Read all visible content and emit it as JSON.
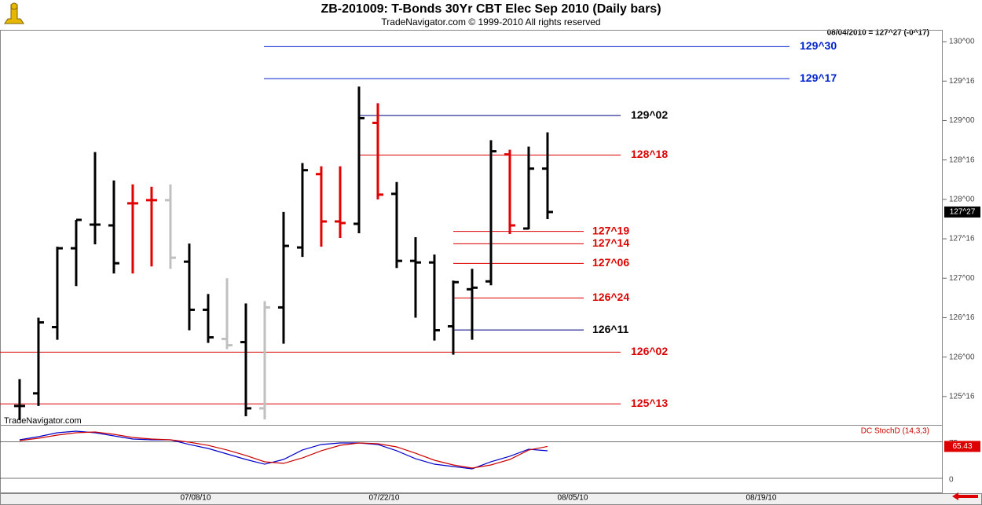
{
  "header": {
    "title": "ZB-201009:  T-Bonds 30Yr CBT Elec Sep 2010  (Daily bars)",
    "copyright": "TradeNavigator.com © 1999-2010 All rights reserved",
    "quote": "08/04/2010 = 127^27 (-0^17)"
  },
  "chart_data": [
    {
      "type": "ohlc",
      "watermark": "TradeNavigator.com",
      "open": [
        125.38,
        125.54,
        126.38,
        127.38,
        127.68,
        127.67,
        127.95,
        127.99,
        127.99,
        127.21,
        126.6,
        126.23,
        126.19,
        125.35,
        126.63,
        127.39,
        128.32,
        127.72,
        127.69,
        128.97,
        128.07,
        127.22,
        127.2,
        126.39,
        126.86,
        126.96,
        128.57,
        127.63,
        128.39
      ],
      "high": [
        125.72,
        126.5,
        127.4,
        127.74,
        128.6,
        128.24,
        128.19,
        128.16,
        128.19,
        127.44,
        126.8,
        127.0,
        126.68,
        126.71,
        127.84,
        128.46,
        128.42,
        128.42,
        129.43,
        129.22,
        128.22,
        127.52,
        127.3,
        126.97,
        127.12,
        128.75,
        128.63,
        128.67,
        128.85
      ],
      "low": [
        125.2,
        125.38,
        126.22,
        126.9,
        127.43,
        127.06,
        127.06,
        127.15,
        127.12,
        126.34,
        126.18,
        126.1,
        125.25,
        125.21,
        126.17,
        127.27,
        127.4,
        127.51,
        127.57,
        128.0,
        127.13,
        126.5,
        126.21,
        126.03,
        126.22,
        126.91,
        127.56,
        127.62,
        127.75
      ],
      "close": [
        125.38,
        126.44,
        127.38,
        127.74,
        127.68,
        127.19,
        127.95,
        127.99,
        127.26,
        126.6,
        126.25,
        126.15,
        125.35,
        126.63,
        127.41,
        128.37,
        127.72,
        127.7,
        129.03,
        128.06,
        127.22,
        127.2,
        126.34,
        126.95,
        126.88,
        128.61,
        127.67,
        128.39,
        127.84
      ],
      "colors": [
        "#000000",
        "#000000",
        "#000000",
        "#000000",
        "#000000",
        "#000000",
        "#e00000",
        "#e00000",
        "#c0c0c0",
        "#000000",
        "#000000",
        "#c0c0c0",
        "#000000",
        "#c0c0c0",
        "#000000",
        "#000000",
        "#e00000",
        "#e00000",
        "#000000",
        "#e00000",
        "#000000",
        "#000000",
        "#000000",
        "#000000",
        "#000000",
        "#000000",
        "#e00000",
        "#000000",
        "#000000"
      ],
      "xlim": [
        -1.04,
        48.96
      ],
      "xticks": [
        {
          "value": 9,
          "label": "07/08/10"
        },
        {
          "value": 19,
          "label": "07/22/10"
        },
        {
          "value": 29,
          "label": "08/05/10"
        },
        {
          "value": 39,
          "label": "08/19/10"
        }
      ],
      "ylim": [
        125.14,
        130.15
      ],
      "yticks": [
        {
          "value": 130,
          "label": "130^00"
        },
        {
          "value": 129.5,
          "label": "129^16"
        },
        {
          "value": 129,
          "label": "129^00"
        },
        {
          "value": 128.5,
          "label": "128^16"
        },
        {
          "value": 128,
          "label": "128^00"
        },
        {
          "value": 127.5,
          "label": "127^16"
        },
        {
          "value": 127,
          "label": "127^00"
        },
        {
          "value": 126.5,
          "label": "126^16"
        },
        {
          "value": 126,
          "label": "126^00"
        },
        {
          "value": 125.5,
          "label": "125^16"
        }
      ],
      "levels": [
        {
          "value": 129.9375,
          "label": "129^30",
          "color": "#0022cc"
        },
        {
          "value": 129.53125,
          "label": "129^17",
          "color": "#0022cc"
        },
        {
          "value": 129.0625,
          "label": "129^02",
          "color": "#000000"
        },
        {
          "value": 128.5625,
          "label": "128^18",
          "color": "#dd0000"
        },
        {
          "value": 127.59375,
          "label": "127^19",
          "color": "#dd0000"
        },
        {
          "value": 127.4375,
          "label": "127^14",
          "color": "#dd0000"
        },
        {
          "value": 127.1875,
          "label": "127^06",
          "color": "#dd0000"
        },
        {
          "value": 126.75,
          "label": "126^24",
          "color": "#dd0000"
        },
        {
          "value": 126.34375,
          "label": "126^11",
          "color": "#000000"
        },
        {
          "value": 126.0625,
          "label": "126^02",
          "color": "#dd0000"
        },
        {
          "value": 125.40625,
          "label": "125^13",
          "color": "#dd0000"
        }
      ],
      "last_price": {
        "value": 127.84,
        "label": "127^27"
      }
    },
    {
      "type": "line",
      "title": "DC StochD (14,3,3)",
      "ylim": [
        0,
        100
      ],
      "yticks": [
        75,
        0
      ],
      "series": [
        {
          "color": "#0000cc",
          "values": [
            79.0,
            85.5,
            93.5,
            96.8,
            93.5,
            87.1,
            80.6,
            79.0,
            79.0,
            69.4,
            61.3,
            50.0,
            38.7,
            29.0,
            38.7,
            58.1,
            69.4,
            72.6,
            72.6,
            69.4,
            56.5,
            40.3,
            29.0,
            24.2,
            19.4,
            33.9,
            45.2,
            59.7,
            56.5
          ]
        },
        {
          "color": "#cc0000",
          "values": [
            77.4,
            82.3,
            88.7,
            93.5,
            95.2,
            90.3,
            83.9,
            80.6,
            79.0,
            74.2,
            67.7,
            58.1,
            46.8,
            33.9,
            30.6,
            41.9,
            56.5,
            67.7,
            72.6,
            71.0,
            64.5,
            51.6,
            37.1,
            27.4,
            21.0,
            27.4,
            38.7,
            58.0,
            65.43
          ]
        }
      ]
    }
  ]
}
